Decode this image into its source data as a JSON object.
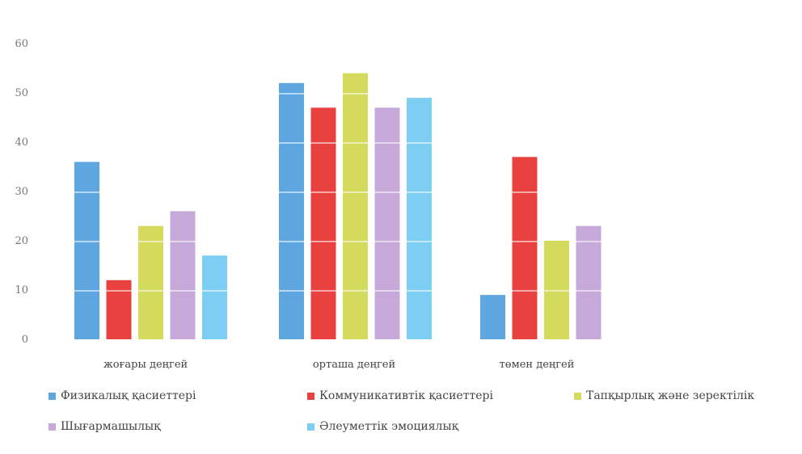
{
  "chart_data": {
    "type": "bar",
    "categories": [
      "жоғары деңгей",
      "орташа деңгей",
      "төмен деңгей"
    ],
    "series": [
      {
        "name": "Физикалық қасиеттері",
        "color": "#5ea6e0",
        "values": [
          36,
          52,
          9
        ]
      },
      {
        "name": "Коммуникативтік қасиеттері",
        "color": "#e8413f",
        "values": [
          12,
          47,
          37
        ]
      },
      {
        "name": "Тапқырлық және зеректілік",
        "color": "#d4db5c",
        "values": [
          23,
          54,
          20
        ]
      },
      {
        "name": "Шығармашылық",
        "color": "#c6a9d9",
        "values": [
          26,
          47,
          23
        ]
      },
      {
        "name": "Әлеуметтік эмоциялық",
        "color": "#7ccff2",
        "values": [
          17,
          49,
          null
        ]
      }
    ],
    "ylim": [
      0,
      60
    ],
    "yticks": [
      0,
      10,
      20,
      30,
      40,
      50,
      60
    ],
    "grid": false,
    "legend_position": "bottom"
  }
}
